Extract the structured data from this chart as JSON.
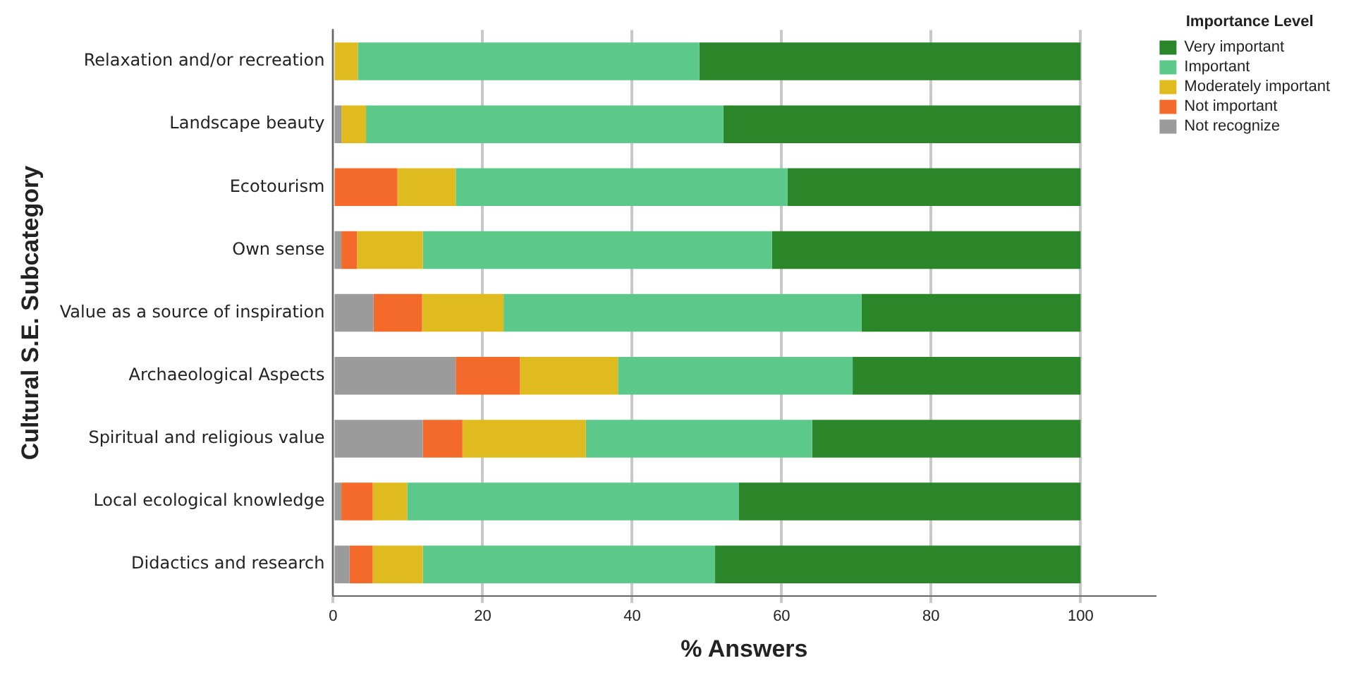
{
  "chart_data": {
    "type": "bar",
    "orientation": "horizontal",
    "stacked": true,
    "xlabel": "% Answers",
    "ylabel": "Cultural S.E. Subcategory",
    "legend_title": "Importance Level",
    "legend": "top right",
    "grid": "x",
    "xlim": [
      0,
      110
    ],
    "xticks": [
      0,
      20,
      40,
      60,
      80,
      100
    ],
    "categories": [
      "Relaxation and/or recreation",
      "Landscape beauty",
      "Ecotourism",
      "Own sense",
      "Value as a source of inspiration",
      "Archaeological Aspects",
      "Spiritual and religious value",
      "Local ecological knowledge",
      "Didactics and research"
    ],
    "series": [
      {
        "name": "Not recognize",
        "color": "#9b9b9b",
        "values": [
          0,
          1.1,
          0,
          1.1,
          5.4,
          16.4,
          12.0,
          1.1,
          2.2
        ]
      },
      {
        "name": "Not important",
        "color": "#f46a2b",
        "values": [
          0,
          0,
          8.6,
          2.1,
          6.5,
          8.6,
          5.3,
          4.2,
          3.1
        ]
      },
      {
        "name": "Moderately important",
        "color": "#e0bb1f",
        "values": [
          3.3,
          3.3,
          7.8,
          8.8,
          10.9,
          13.1,
          16.5,
          4.6,
          6.7
        ]
      },
      {
        "name": "Important",
        "color": "#5cc98b",
        "values": [
          45.7,
          47.8,
          44.4,
          46.7,
          47.9,
          31.4,
          30.3,
          44.4,
          39.1
        ]
      },
      {
        "name": "Very important",
        "color": "#2a8629",
        "values": [
          51.0,
          47.8,
          39.2,
          41.3,
          29.3,
          30.5,
          35.9,
          45.7,
          48.9
        ]
      }
    ]
  }
}
